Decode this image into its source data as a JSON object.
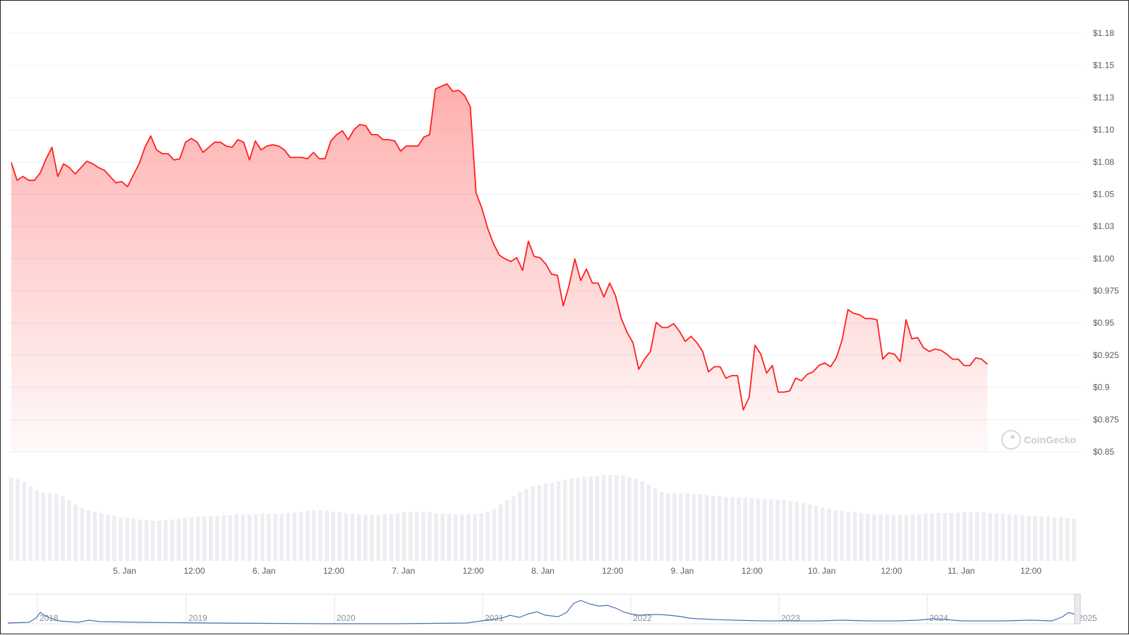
{
  "watermark": "CoinGecko",
  "colors": {
    "price_line": "#ff1f1f",
    "price_fill": "#ff4d4d",
    "volume_bar": "#eceef2",
    "grid": "#eef0f3",
    "navigator_line": "#4a6fb5"
  },
  "chart_data": {
    "type": "area",
    "title": "",
    "ylabel": "",
    "xlabel": "",
    "ylim": [
      0.85,
      1.18
    ],
    "y_ticks": [
      "$1.18",
      "$1.15",
      "$1.13",
      "$1.10",
      "$1.08",
      "$1.05",
      "$1.03",
      "$1.00",
      "$0.975",
      "$0.95",
      "$0.925",
      "$0.9",
      "$0.875",
      "$0.85"
    ],
    "x_ticks": [
      "5. Jan",
      "12:00",
      "6. Jan",
      "12:00",
      "7. Jan",
      "12:00",
      "8. Jan",
      "12:00",
      "9. Jan",
      "12:00",
      "10. Jan",
      "12:00",
      "11. Jan",
      "12:00"
    ],
    "x_tick_hours": [
      24,
      36,
      48,
      60,
      72,
      84,
      96,
      108,
      120,
      132,
      144,
      156,
      168,
      180
    ],
    "x_range_hours": [
      4.5,
      188.5
    ],
    "price": [
      [
        4.5,
        1.078
      ],
      [
        5.5,
        1.064
      ],
      [
        6.5,
        1.067
      ],
      [
        7.5,
        1.064
      ],
      [
        8.5,
        1.064
      ],
      [
        9.5,
        1.07
      ],
      [
        10.5,
        1.081
      ],
      [
        11.5,
        1.09
      ],
      [
        12.5,
        1.067
      ],
      [
        13.5,
        1.077
      ],
      [
        14.5,
        1.074
      ],
      [
        15.5,
        1.069
      ],
      [
        16.5,
        1.074
      ],
      [
        17.5,
        1.079
      ],
      [
        18.5,
        1.077
      ],
      [
        19.5,
        1.074
      ],
      [
        20.5,
        1.072
      ],
      [
        21.5,
        1.067
      ],
      [
        22.5,
        1.062
      ],
      [
        23.5,
        1.063
      ],
      [
        24.5,
        1.059
      ],
      [
        25.5,
        1.068
      ],
      [
        26.5,
        1.077
      ],
      [
        27.5,
        1.09
      ],
      [
        28.5,
        1.099
      ],
      [
        29.5,
        1.088
      ],
      [
        30.5,
        1.085
      ],
      [
        31.5,
        1.085
      ],
      [
        32.5,
        1.08
      ],
      [
        33.5,
        1.081
      ],
      [
        34.5,
        1.094
      ],
      [
        35.5,
        1.097
      ],
      [
        36.5,
        1.094
      ],
      [
        37.5,
        1.086
      ],
      [
        38.5,
        1.09
      ],
      [
        39.5,
        1.094
      ],
      [
        40.5,
        1.094
      ],
      [
        41.5,
        1.091
      ],
      [
        42.5,
        1.09
      ],
      [
        43.5,
        1.096
      ],
      [
        44.5,
        1.094
      ],
      [
        45.5,
        1.08
      ],
      [
        46.5,
        1.095
      ],
      [
        47.5,
        1.088
      ],
      [
        48.5,
        1.091
      ],
      [
        49.5,
        1.092
      ],
      [
        50.5,
        1.091
      ],
      [
        51.5,
        1.088
      ],
      [
        52.5,
        1.082
      ],
      [
        53.5,
        1.082
      ],
      [
        54.5,
        1.082
      ],
      [
        55.5,
        1.081
      ],
      [
        56.5,
        1.086
      ],
      [
        57.5,
        1.081
      ],
      [
        58.5,
        1.081
      ],
      [
        59.5,
        1.095
      ],
      [
        60.5,
        1.1
      ],
      [
        61.5,
        1.103
      ],
      [
        62.5,
        1.096
      ],
      [
        63.5,
        1.104
      ],
      [
        64.5,
        1.108
      ],
      [
        65.5,
        1.107
      ],
      [
        66.5,
        1.1
      ],
      [
        67.5,
        1.1
      ],
      [
        68.5,
        1.096
      ],
      [
        69.5,
        1.096
      ],
      [
        70.5,
        1.095
      ],
      [
        71.5,
        1.087
      ],
      [
        72.5,
        1.091
      ],
      [
        73.5,
        1.091
      ],
      [
        74.5,
        1.091
      ],
      [
        75.5,
        1.098
      ],
      [
        76.5,
        1.1
      ],
      [
        77.5,
        1.136
      ],
      [
        78.5,
        1.138
      ],
      [
        79.5,
        1.14
      ],
      [
        80.5,
        1.134
      ],
      [
        81.5,
        1.135
      ],
      [
        82.5,
        1.131
      ],
      [
        83.5,
        1.122
      ],
      [
        84.5,
        1.054
      ],
      [
        85.5,
        1.042
      ],
      [
        86.5,
        1.026
      ],
      [
        87.5,
        1.014
      ],
      [
        88.5,
        1.005
      ],
      [
        89.5,
        1.002
      ],
      [
        90.5,
        1.0
      ],
      [
        91.5,
        1.003
      ],
      [
        92.5,
        0.993
      ],
      [
        93.5,
        1.016
      ],
      [
        94.5,
        1.004
      ],
      [
        95.5,
        1.003
      ],
      [
        96.5,
        0.998
      ],
      [
        97.5,
        0.99
      ],
      [
        98.5,
        0.989
      ],
      [
        99.5,
        0.965
      ],
      [
        100.5,
        0.981
      ],
      [
        101.5,
        1.002
      ],
      [
        102.5,
        0.985
      ],
      [
        103.5,
        0.994
      ],
      [
        104.5,
        0.983
      ],
      [
        105.5,
        0.983
      ],
      [
        106.5,
        0.972
      ],
      [
        107.5,
        0.983
      ],
      [
        108.5,
        0.973
      ],
      [
        109.5,
        0.955
      ],
      [
        110.5,
        0.944
      ],
      [
        111.5,
        0.936
      ],
      [
        112.5,
        0.915
      ],
      [
        113.5,
        0.923
      ],
      [
        114.5,
        0.929
      ],
      [
        115.5,
        0.952
      ],
      [
        116.5,
        0.948
      ],
      [
        117.5,
        0.948
      ],
      [
        118.5,
        0.951
      ],
      [
        119.5,
        0.945
      ],
      [
        120.5,
        0.937
      ],
      [
        121.5,
        0.941
      ],
      [
        122.5,
        0.936
      ],
      [
        123.5,
        0.929
      ],
      [
        124.5,
        0.913
      ],
      [
        125.5,
        0.917
      ],
      [
        126.5,
        0.917
      ],
      [
        127.5,
        0.908
      ],
      [
        128.5,
        0.91
      ],
      [
        129.5,
        0.91
      ],
      [
        130.5,
        0.883
      ],
      [
        131.5,
        0.893
      ],
      [
        132.5,
        0.934
      ],
      [
        133.5,
        0.927
      ],
      [
        134.5,
        0.912
      ],
      [
        135.5,
        0.918
      ],
      [
        136.5,
        0.897
      ],
      [
        137.5,
        0.897
      ],
      [
        138.5,
        0.898
      ],
      [
        139.5,
        0.908
      ],
      [
        140.5,
        0.906
      ],
      [
        141.5,
        0.911
      ],
      [
        142.5,
        0.913
      ],
      [
        143.5,
        0.918
      ],
      [
        144.5,
        0.92
      ],
      [
        145.5,
        0.917
      ],
      [
        146.5,
        0.924
      ],
      [
        147.5,
        0.938
      ],
      [
        148.5,
        0.962
      ],
      [
        149.5,
        0.959
      ],
      [
        150.5,
        0.958
      ],
      [
        151.5,
        0.955
      ],
      [
        152.5,
        0.955
      ],
      [
        153.5,
        0.954
      ],
      [
        154.5,
        0.923
      ],
      [
        155.5,
        0.928
      ],
      [
        156.5,
        0.927
      ],
      [
        157.5,
        0.921
      ],
      [
        158.5,
        0.954
      ],
      [
        159.5,
        0.939
      ],
      [
        160.5,
        0.94
      ],
      [
        161.5,
        0.932
      ],
      [
        162.5,
        0.929
      ],
      [
        163.5,
        0.931
      ],
      [
        164.5,
        0.93
      ],
      [
        165.5,
        0.927
      ],
      [
        166.5,
        0.923
      ],
      [
        167.5,
        0.923
      ],
      [
        168.5,
        0.918
      ],
      [
        169.5,
        0.918
      ],
      [
        170.5,
        0.924
      ],
      [
        171.5,
        0.923
      ],
      [
        172.5,
        0.919
      ]
    ],
    "navigator": {
      "labels": [
        "2018",
        "2019",
        "2020",
        "2021",
        "2022",
        "2023",
        "2024",
        "2025"
      ]
    }
  }
}
